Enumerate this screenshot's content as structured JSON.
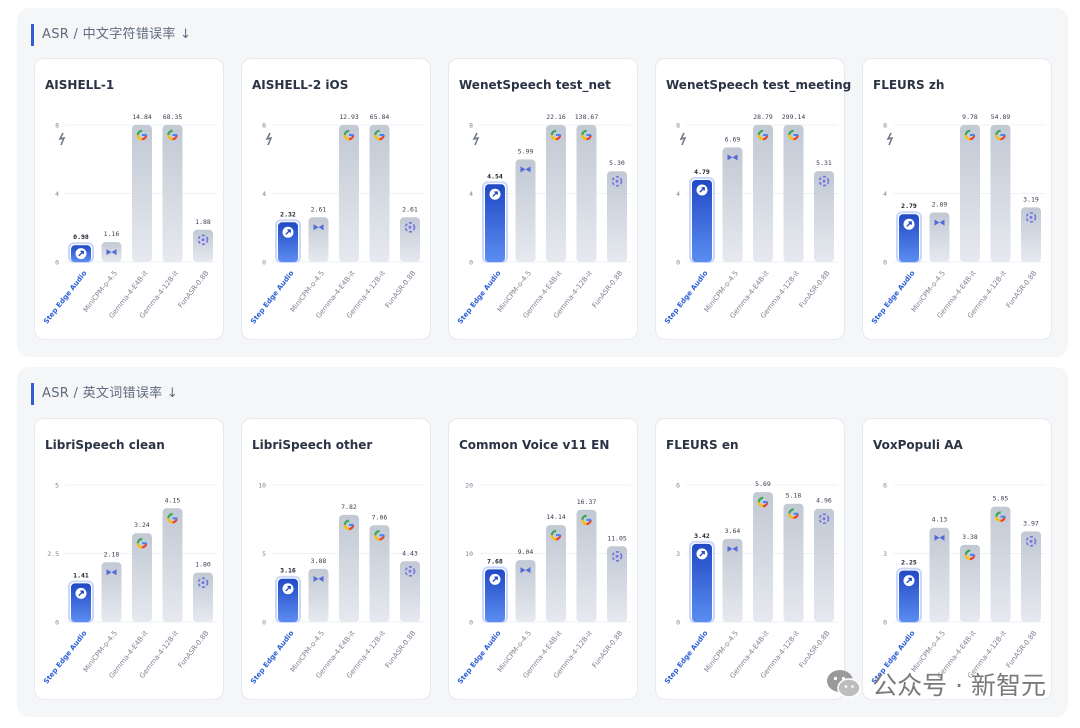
{
  "sections": [
    {
      "title": "ASR / 中文字符错误率 ↓"
    },
    {
      "title": "ASR / 英文词错误率 ↓"
    }
  ],
  "watermark": {
    "text": "公众号 · 新智元"
  },
  "colors": {
    "highlight_top": "#2149c6",
    "highlight_bottom": "#5b8df0",
    "gray_top": "#c2c9d4",
    "gray_bottom": "#e6e9ef",
    "accent": "#2e5fd6"
  },
  "chart_data": [
    {
      "type": "bar",
      "title": "AISHELL-1",
      "yticks": [
        "0",
        "4",
        "8"
      ],
      "ymax": 8,
      "truncated": true,
      "categories": [
        "Step Edge Audio",
        "MiniCPM-o-4.5",
        "Gemma-4-E4B-it",
        "Gemma-4-12B-it",
        "FunASR-0.8B"
      ],
      "values": [
        0.98,
        1.16,
        14.84,
        68.35,
        1.88
      ],
      "labels": [
        "0.98",
        "1.16",
        "14.84",
        "68.35",
        "1.88"
      ],
      "icons": [
        "step-logo",
        "minicpm-logo",
        "gemma-logo",
        "gemma-logo",
        "funasr-logo"
      ]
    },
    {
      "type": "bar",
      "title": "AISHELL-2 iOS",
      "yticks": [
        "0",
        "4",
        "8"
      ],
      "ymax": 8,
      "truncated": true,
      "categories": [
        "Step Edge Audio",
        "MiniCPM-o-4.5",
        "Gemma-4-E4B-it",
        "Gemma-4-12B-it",
        "FunASR-0.8B"
      ],
      "values": [
        2.32,
        2.61,
        12.93,
        65.84,
        2.61
      ],
      "labels": [
        "2.32",
        "2.61",
        "12.93",
        "65.84",
        "2.61"
      ],
      "icons": [
        "step-logo",
        "minicpm-logo",
        "gemma-logo",
        "gemma-logo",
        "funasr-logo"
      ]
    },
    {
      "type": "bar",
      "title": "WenetSpeech test_net",
      "yticks": [
        "0",
        "4",
        "8"
      ],
      "ymax": 8,
      "truncated": true,
      "categories": [
        "Step Edge Audio",
        "MiniCPM-o-4.5",
        "Gemma-4-E4B-it",
        "Gemma-4-12B-it",
        "FunASR-0.8B"
      ],
      "values": [
        4.54,
        5.99,
        22.16,
        138.67,
        5.3
      ],
      "labels": [
        "4.54",
        "5.99",
        "22.16",
        "138.67",
        "5.30"
      ],
      "icons": [
        "step-logo",
        "minicpm-logo",
        "gemma-logo",
        "gemma-logo",
        "funasr-logo"
      ]
    },
    {
      "type": "bar",
      "title": "WenetSpeech test_meeting",
      "yticks": [
        "0",
        "4",
        "8"
      ],
      "ymax": 8,
      "truncated": true,
      "categories": [
        "Step Edge Audio",
        "MiniCPM-o-4.5",
        "Gemma-4-E4B-it",
        "Gemma-4-12B-it",
        "FunASR-0.8B"
      ],
      "values": [
        4.79,
        6.69,
        28.79,
        299.14,
        5.31
      ],
      "labels": [
        "4.79",
        "6.69",
        "28.79",
        "299.14",
        "5.31"
      ],
      "icons": [
        "step-logo",
        "minicpm-logo",
        "gemma-logo",
        "gemma-logo",
        "funasr-logo"
      ]
    },
    {
      "type": "bar",
      "title": "FLEURS zh",
      "yticks": [
        "0",
        "4",
        "8"
      ],
      "ymax": 8,
      "truncated": true,
      "categories": [
        "Step Edge Audio",
        "MiniCPM-o-4.5",
        "Gemma-4-E4B-it",
        "Gemma-4-12B-it",
        "FunASR-0.8B"
      ],
      "values": [
        2.79,
        2.89,
        9.78,
        54.89,
        3.19
      ],
      "labels": [
        "2.79",
        "2.89",
        "9.78",
        "54.89",
        "3.19"
      ],
      "icons": [
        "step-logo",
        "minicpm-logo",
        "gemma-logo",
        "gemma-logo",
        "funasr-logo"
      ]
    },
    {
      "type": "bar",
      "title": "LibriSpeech clean",
      "yticks": [
        "0",
        "2.5",
        "5"
      ],
      "ymax": 5,
      "truncated": false,
      "categories": [
        "Step Edge Audio",
        "MiniCPM-o-4.5",
        "Gemma-4-E4B-it",
        "Gemma-4-12B-it",
        "FunASR-0.8B"
      ],
      "values": [
        1.41,
        2.18,
        3.24,
        4.15,
        1.8
      ],
      "labels": [
        "1.41",
        "2.18",
        "3.24",
        "4.15",
        "1.80"
      ],
      "icons": [
        "step-logo",
        "minicpm-logo",
        "gemma-logo",
        "gemma-logo",
        "funasr-logo"
      ]
    },
    {
      "type": "bar",
      "title": "LibriSpeech other",
      "yticks": [
        "0",
        "5",
        "10"
      ],
      "ymax": 10,
      "truncated": false,
      "categories": [
        "Step Edge Audio",
        "MiniCPM-o-4.5",
        "Gemma-4-E4B-it",
        "Gemma-4-12B-it",
        "FunASR-0.8B"
      ],
      "values": [
        3.16,
        3.88,
        7.82,
        7.06,
        4.43
      ],
      "labels": [
        "3.16",
        "3.88",
        "7.82",
        "7.06",
        "4.43"
      ],
      "icons": [
        "step-logo",
        "minicpm-logo",
        "gemma-logo",
        "gemma-logo",
        "funasr-logo"
      ]
    },
    {
      "type": "bar",
      "title": "Common Voice v11 EN",
      "yticks": [
        "0",
        "10",
        "20"
      ],
      "ymax": 20,
      "truncated": false,
      "categories": [
        "Step Edge Audio",
        "MiniCPM-o-4.5",
        "Gemma-4-E4B-it",
        "Gemma-4-12B-it",
        "FunASR-0.8B"
      ],
      "values": [
        7.68,
        9.04,
        14.14,
        16.37,
        11.05
      ],
      "labels": [
        "7.68",
        "9.04",
        "14.14",
        "16.37",
        "11.05"
      ],
      "icons": [
        "step-logo",
        "minicpm-logo",
        "gemma-logo",
        "gemma-logo",
        "funasr-logo"
      ]
    },
    {
      "type": "bar",
      "title": "FLEURS en",
      "yticks": [
        "0",
        "3",
        "6"
      ],
      "ymax": 6,
      "truncated": false,
      "categories": [
        "Step Edge Audio",
        "MiniCPM-o-4.5",
        "Gemma-4-E4B-it",
        "Gemma-4-12B-it",
        "FunASR-0.8B"
      ],
      "values": [
        3.42,
        3.64,
        5.69,
        5.18,
        4.96
      ],
      "labels": [
        "3.42",
        "3.64",
        "5.69",
        "5.18",
        "4.96"
      ],
      "icons": [
        "step-logo",
        "minicpm-logo",
        "gemma-logo",
        "gemma-logo",
        "funasr-logo"
      ]
    },
    {
      "type": "bar",
      "title": "VoxPopuli AA",
      "yticks": [
        "0",
        "3",
        "6"
      ],
      "ymax": 6,
      "truncated": false,
      "categories": [
        "Step Edge Audio",
        "MiniCPM-o-4.5",
        "Gemma-4-E4B-it",
        "Gemma-4-12B-it",
        "FunASR-0.8B"
      ],
      "values": [
        2.25,
        4.13,
        3.38,
        5.05,
        3.97
      ],
      "labels": [
        "2.25",
        "4.13",
        "3.38",
        "5.05",
        "3.97"
      ],
      "icons": [
        "step-logo",
        "minicpm-logo",
        "gemma-logo",
        "gemma-logo",
        "funasr-logo"
      ]
    }
  ]
}
